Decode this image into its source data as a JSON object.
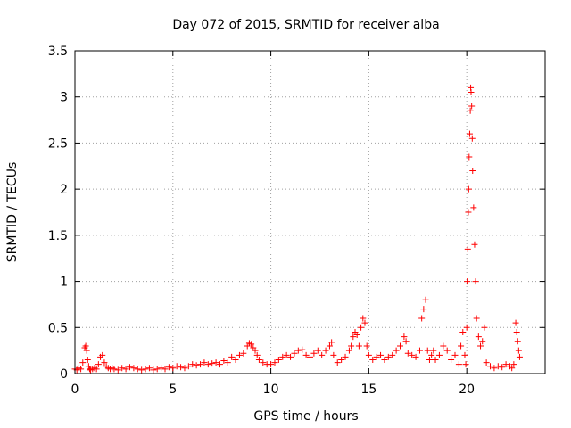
{
  "chart_data": {
    "type": "scatter",
    "title": "Day 072 of 2015, SRMTID for receiver alba",
    "xlabel": "GPS time / hours",
    "ylabel": "SRMTID / TECUs",
    "xlim": [
      0,
      24
    ],
    "ylim": [
      0,
      3.5
    ],
    "x_ticks": [
      0,
      5,
      10,
      15,
      20
    ],
    "x_tick_labels": [
      "0",
      "5",
      "10",
      "15",
      "20"
    ],
    "y_ticks": [
      0,
      0.5,
      1,
      1.5,
      2,
      2.5,
      3,
      3.5
    ],
    "y_tick_labels": [
      "0",
      "0.5",
      "1",
      "1.5",
      "2",
      "2.5",
      "3",
      "3.5"
    ],
    "grid": true,
    "marker": "+",
    "color": "#ff0000",
    "series": [
      {
        "name": "SRMTID",
        "x": [
          0.0,
          0.1,
          0.2,
          0.3,
          0.4,
          0.5,
          0.55,
          0.6,
          0.65,
          0.7,
          0.75,
          0.8,
          0.9,
          1.0,
          1.1,
          1.2,
          1.3,
          1.4,
          1.5,
          1.6,
          1.7,
          1.8,
          1.9,
          2.0,
          2.2,
          2.4,
          2.6,
          2.8,
          3.0,
          3.2,
          3.4,
          3.6,
          3.8,
          4.0,
          4.2,
          4.4,
          4.6,
          4.8,
          5.0,
          5.2,
          5.4,
          5.6,
          5.8,
          6.0,
          6.2,
          6.4,
          6.6,
          6.8,
          7.0,
          7.2,
          7.4,
          7.6,
          7.8,
          8.0,
          8.2,
          8.4,
          8.6,
          8.8,
          8.9,
          9.0,
          9.1,
          9.2,
          9.3,
          9.4,
          9.6,
          9.8,
          10.0,
          10.2,
          10.4,
          10.6,
          10.8,
          11.0,
          11.2,
          11.4,
          11.6,
          11.8,
          12.0,
          12.2,
          12.4,
          12.6,
          12.8,
          13.0,
          13.1,
          13.2,
          13.4,
          13.6,
          13.8,
          14.0,
          14.1,
          14.2,
          14.3,
          14.4,
          14.5,
          14.6,
          14.7,
          14.8,
          14.9,
          15.0,
          15.2,
          15.4,
          15.6,
          15.8,
          16.0,
          16.2,
          16.4,
          16.6,
          16.8,
          16.9,
          17.0,
          17.2,
          17.4,
          17.6,
          17.7,
          17.8,
          17.9,
          18.0,
          18.1,
          18.2,
          18.3,
          18.4,
          18.6,
          18.8,
          19.0,
          19.2,
          19.4,
          19.6,
          19.7,
          19.8,
          19.9,
          19.95,
          20.0,
          20.02,
          20.05,
          20.08,
          20.1,
          20.12,
          20.15,
          20.18,
          20.2,
          20.22,
          20.25,
          20.28,
          20.3,
          20.35,
          20.4,
          20.45,
          20.5,
          20.6,
          20.7,
          20.8,
          20.9,
          21.0,
          21.2,
          21.4,
          21.6,
          21.8,
          22.0,
          22.2,
          22.3,
          22.4,
          22.5,
          22.55,
          22.6,
          22.65,
          22.7
        ],
        "y": [
          0.05,
          0.04,
          0.06,
          0.05,
          0.12,
          0.28,
          0.3,
          0.25,
          0.15,
          0.08,
          0.05,
          0.04,
          0.05,
          0.06,
          0.05,
          0.1,
          0.18,
          0.2,
          0.12,
          0.08,
          0.06,
          0.05,
          0.06,
          0.05,
          0.04,
          0.06,
          0.05,
          0.07,
          0.06,
          0.05,
          0.04,
          0.05,
          0.06,
          0.04,
          0.05,
          0.06,
          0.05,
          0.07,
          0.06,
          0.08,
          0.07,
          0.06,
          0.08,
          0.1,
          0.09,
          0.1,
          0.12,
          0.1,
          0.11,
          0.12,
          0.1,
          0.14,
          0.12,
          0.18,
          0.15,
          0.2,
          0.22,
          0.3,
          0.33,
          0.32,
          0.28,
          0.25,
          0.2,
          0.15,
          0.12,
          0.1,
          0.1,
          0.12,
          0.15,
          0.18,
          0.2,
          0.18,
          0.22,
          0.25,
          0.26,
          0.2,
          0.18,
          0.22,
          0.25,
          0.2,
          0.25,
          0.3,
          0.34,
          0.2,
          0.12,
          0.15,
          0.18,
          0.25,
          0.3,
          0.4,
          0.45,
          0.42,
          0.3,
          0.5,
          0.6,
          0.55,
          0.3,
          0.2,
          0.15,
          0.18,
          0.2,
          0.15,
          0.18,
          0.2,
          0.25,
          0.3,
          0.4,
          0.35,
          0.22,
          0.2,
          0.18,
          0.25,
          0.6,
          0.7,
          0.8,
          0.25,
          0.15,
          0.2,
          0.25,
          0.15,
          0.2,
          0.3,
          0.25,
          0.15,
          0.2,
          0.1,
          0.3,
          0.45,
          0.2,
          0.1,
          0.5,
          1.0,
          1.35,
          1.75,
          2.0,
          2.35,
          2.6,
          2.85,
          3.1,
          3.05,
          2.9,
          2.55,
          2.2,
          1.8,
          1.4,
          1.0,
          0.6,
          0.4,
          0.3,
          0.35,
          0.5,
          0.12,
          0.08,
          0.06,
          0.08,
          0.07,
          0.1,
          0.08,
          0.06,
          0.1,
          0.55,
          0.45,
          0.35,
          0.25,
          0.18
        ]
      }
    ]
  }
}
